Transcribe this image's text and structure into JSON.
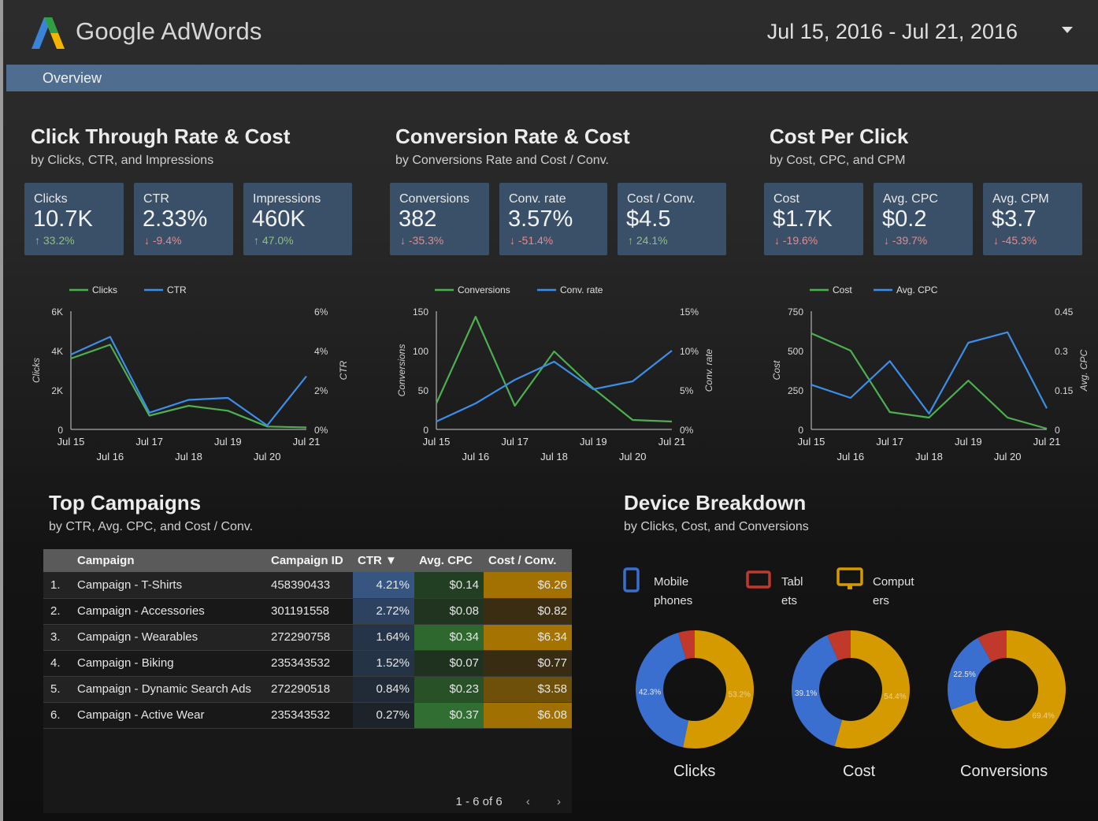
{
  "header": {
    "title": "Google AdWords",
    "date_range": "Jul 15, 2016 - Jul 21, 2016"
  },
  "nav": {
    "tab": "Overview"
  },
  "colors": {
    "green": "#4caf50",
    "blue": "#3d8ee8",
    "kpi_bg": "#3a5068",
    "mobile": "#3a6fcf",
    "tablet": "#c0392b",
    "computer": "#d49a00"
  },
  "sections": {
    "ctr": {
      "title": "Click Through Rate & Cost",
      "subtitle": "by Clicks, CTR, and Impressions"
    },
    "conv": {
      "title": "Conversion Rate & Cost",
      "subtitle": "by Conversions Rate and Cost / Conv."
    },
    "cpc": {
      "title": "Cost Per Click",
      "subtitle": "by Cost, CPC, and CPM"
    },
    "campaigns": {
      "title": "Top Campaigns",
      "subtitle": "by CTR, Avg. CPC, and Cost / Conv."
    },
    "device": {
      "title": "Device Breakdown",
      "subtitle": "by Clicks, Cost, and Conversions"
    }
  },
  "kpis": [
    {
      "label": "Clicks",
      "value": "10.7K",
      "delta": "33.2%",
      "dir": "up"
    },
    {
      "label": "CTR",
      "value": "2.33%",
      "delta": "-9.4%",
      "dir": "down"
    },
    {
      "label": "Impressions",
      "value": "460K",
      "delta": "47.0%",
      "dir": "up"
    },
    {
      "label": "Conversions",
      "value": "382",
      "delta": "-35.3%",
      "dir": "down"
    },
    {
      "label": "Conv. rate",
      "value": "3.57%",
      "delta": "-51.4%",
      "dir": "down"
    },
    {
      "label": "Cost / Conv.",
      "value": "$4.5",
      "delta": "24.1%",
      "dir": "up"
    },
    {
      "label": "Cost",
      "value": "$1.7K",
      "delta": "-19.6%",
      "dir": "down"
    },
    {
      "label": "Avg. CPC",
      "value": "$0.2",
      "delta": "-39.7%",
      "dir": "down"
    },
    {
      "label": "Avg. CPM",
      "value": "$3.7",
      "delta": "-45.3%",
      "dir": "down"
    }
  ],
  "chart_data": [
    {
      "type": "line",
      "categories": [
        "Jul 15",
        "Jul 16",
        "Jul 17",
        "Jul 18",
        "Jul 19",
        "Jul 20",
        "Jul 21"
      ],
      "series": [
        {
          "name": "Clicks",
          "axis": "left",
          "color": "#4caf50",
          "values": [
            3600,
            4300,
            700,
            1200,
            950,
            150,
            100
          ]
        },
        {
          "name": "CTR",
          "axis": "right",
          "color": "#3d8ee8",
          "values": [
            3.8,
            4.7,
            0.85,
            1.5,
            1.6,
            0.2,
            2.7
          ]
        }
      ],
      "ylabel_left": "Clicks",
      "ylabel_right": "CTR",
      "left_ticks": [
        "0",
        "2K",
        "4K",
        "6K"
      ],
      "left_max": 6000,
      "right_ticks": [
        "0%",
        "2%",
        "4%",
        "6%"
      ],
      "right_max": 6,
      "legend": "top"
    },
    {
      "type": "line",
      "categories": [
        "Jul 15",
        "Jul 16",
        "Jul 17",
        "Jul 18",
        "Jul 19",
        "Jul 20",
        "Jul 21"
      ],
      "series": [
        {
          "name": "Conversions",
          "axis": "left",
          "color": "#4caf50",
          "values": [
            33,
            143,
            30,
            99,
            52,
            12,
            10
          ]
        },
        {
          "name": "Conv. rate",
          "axis": "right",
          "color": "#3d8ee8",
          "values": [
            1,
            3.3,
            6.3,
            8.6,
            5.1,
            6.1,
            10
          ]
        }
      ],
      "ylabel_left": "Conversions",
      "ylabel_right": "Conv. rate",
      "left_ticks": [
        "0",
        "50",
        "100",
        "150"
      ],
      "left_max": 150,
      "right_ticks": [
        "0%",
        "5%",
        "10%",
        "15%"
      ],
      "right_max": 15,
      "legend": "top"
    },
    {
      "type": "line",
      "categories": [
        "Jul 15",
        "Jul 16",
        "Jul 17",
        "Jul 18",
        "Jul 19",
        "Jul 20",
        "Jul 21"
      ],
      "series": [
        {
          "name": "Cost",
          "axis": "left",
          "color": "#4caf50",
          "values": [
            610,
            500,
            110,
            75,
            310,
            75,
            5
          ]
        },
        {
          "name": "Avg. CPC",
          "axis": "right",
          "color": "#3d8ee8",
          "values": [
            0.17,
            0.12,
            0.26,
            0.06,
            0.33,
            0.37,
            0.08
          ]
        }
      ],
      "ylabel_left": "Cost",
      "ylabel_right": "Avg. CPC",
      "left_ticks": [
        "0",
        "250",
        "500",
        "750"
      ],
      "left_max": 750,
      "right_ticks": [
        "0",
        "0.15",
        "0.3",
        "0.45"
      ],
      "right_max": 0.45,
      "legend": "top"
    },
    {
      "type": "table",
      "columns": [
        "Campaign",
        "Campaign ID",
        "CTR ▼",
        "Avg. CPC",
        "Cost / Conv."
      ],
      "rows": [
        {
          "rank": "1.",
          "campaign": "Campaign - T-Shirts",
          "id": "458390433",
          "ctr": "4.21%",
          "cpc": "$0.14",
          "cost_conv": "$6.26",
          "ctr_v": 4.21,
          "cpc_v": 0.14,
          "cost_v": 6.26
        },
        {
          "rank": "2.",
          "campaign": "Campaign - Accessories",
          "id": "301191558",
          "ctr": "2.72%",
          "cpc": "$0.08",
          "cost_conv": "$0.82",
          "ctr_v": 2.72,
          "cpc_v": 0.08,
          "cost_v": 0.82
        },
        {
          "rank": "3.",
          "campaign": "Campaign - Wearables",
          "id": "272290758",
          "ctr": "1.64%",
          "cpc": "$0.34",
          "cost_conv": "$6.34",
          "ctr_v": 1.64,
          "cpc_v": 0.34,
          "cost_v": 6.34
        },
        {
          "rank": "4.",
          "campaign": "Campaign - Biking",
          "id": "235343532",
          "ctr": "1.52%",
          "cpc": "$0.07",
          "cost_conv": "$0.77",
          "ctr_v": 1.52,
          "cpc_v": 0.07,
          "cost_v": 0.77
        },
        {
          "rank": "5.",
          "campaign": "Campaign - Dynamic Search Ads",
          "id": "272290518",
          "ctr": "0.84%",
          "cpc": "$0.23",
          "cost_conv": "$3.58",
          "ctr_v": 0.84,
          "cpc_v": 0.23,
          "cost_v": 3.58
        },
        {
          "rank": "6.",
          "campaign": "Campaign - Active Wear",
          "id": "235343532",
          "ctr": "0.27%",
          "cpc": "$0.37",
          "cost_conv": "$6.08",
          "ctr_v": 0.27,
          "cpc_v": 0.37,
          "cost_v": 6.08
        }
      ],
      "pager": "1 - 6 of 6"
    },
    {
      "type": "pie",
      "legend": [
        {
          "name": "Mobile phones",
          "line1": "Mobile",
          "line2": "phones",
          "color": "#3a6fcf",
          "icon": "mobile-phone-icon"
        },
        {
          "name": "Tablets",
          "line1": "Tabl",
          "line2": "ets",
          "color": "#c0392b",
          "icon": "tablet-icon"
        },
        {
          "name": "Computers",
          "line1": "Comput",
          "line2": "ers",
          "color": "#d49a00",
          "icon": "computer-icon"
        }
      ],
      "donuts": [
        {
          "label": "Clicks",
          "mobile": 42.3,
          "tablet": 4.5,
          "computer": 53.2,
          "mobile_label": "42.3%",
          "computer_label": "53.2%"
        },
        {
          "label": "Cost",
          "mobile": 39.1,
          "tablet": 6.5,
          "computer": 54.4,
          "mobile_label": "39.1%",
          "computer_label": "54.4%"
        },
        {
          "label": "Conversions",
          "mobile": 22.5,
          "tablet": 8.1,
          "computer": 69.4,
          "mobile_label": "22.5%",
          "computer_label": "69.4%"
        }
      ]
    }
  ]
}
